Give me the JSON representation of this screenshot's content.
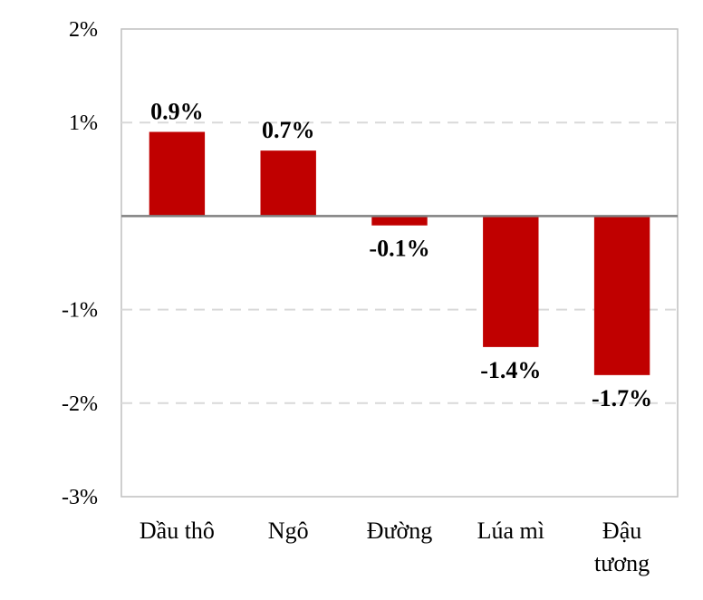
{
  "chart_data": {
    "type": "bar",
    "title": "",
    "xlabel": "",
    "ylabel": "",
    "categories": [
      [
        "Dầu thô"
      ],
      [
        "Ngô"
      ],
      [
        "Đường"
      ],
      [
        "Lúa mì"
      ],
      [
        "Đậu",
        "tương"
      ]
    ],
    "values": [
      0.9,
      0.7,
      -0.1,
      -1.4,
      -1.7
    ],
    "data_labels": [
      "0.9%",
      "0.7%",
      "-0.1%",
      "-1.4%",
      "-1.7%"
    ],
    "ylim": [
      -3,
      2
    ],
    "y_ticks": [
      2,
      1,
      -1,
      -2,
      -3
    ],
    "y_tick_labels": [
      "2%",
      "1%",
      "-1%",
      "-2%",
      "-3%"
    ],
    "grid": true,
    "legend": "none",
    "colors": {
      "bar": "#c00000",
      "zero_line": "#808080",
      "gridline": "#d9d9d9",
      "frame": "#bfbfbf"
    }
  }
}
